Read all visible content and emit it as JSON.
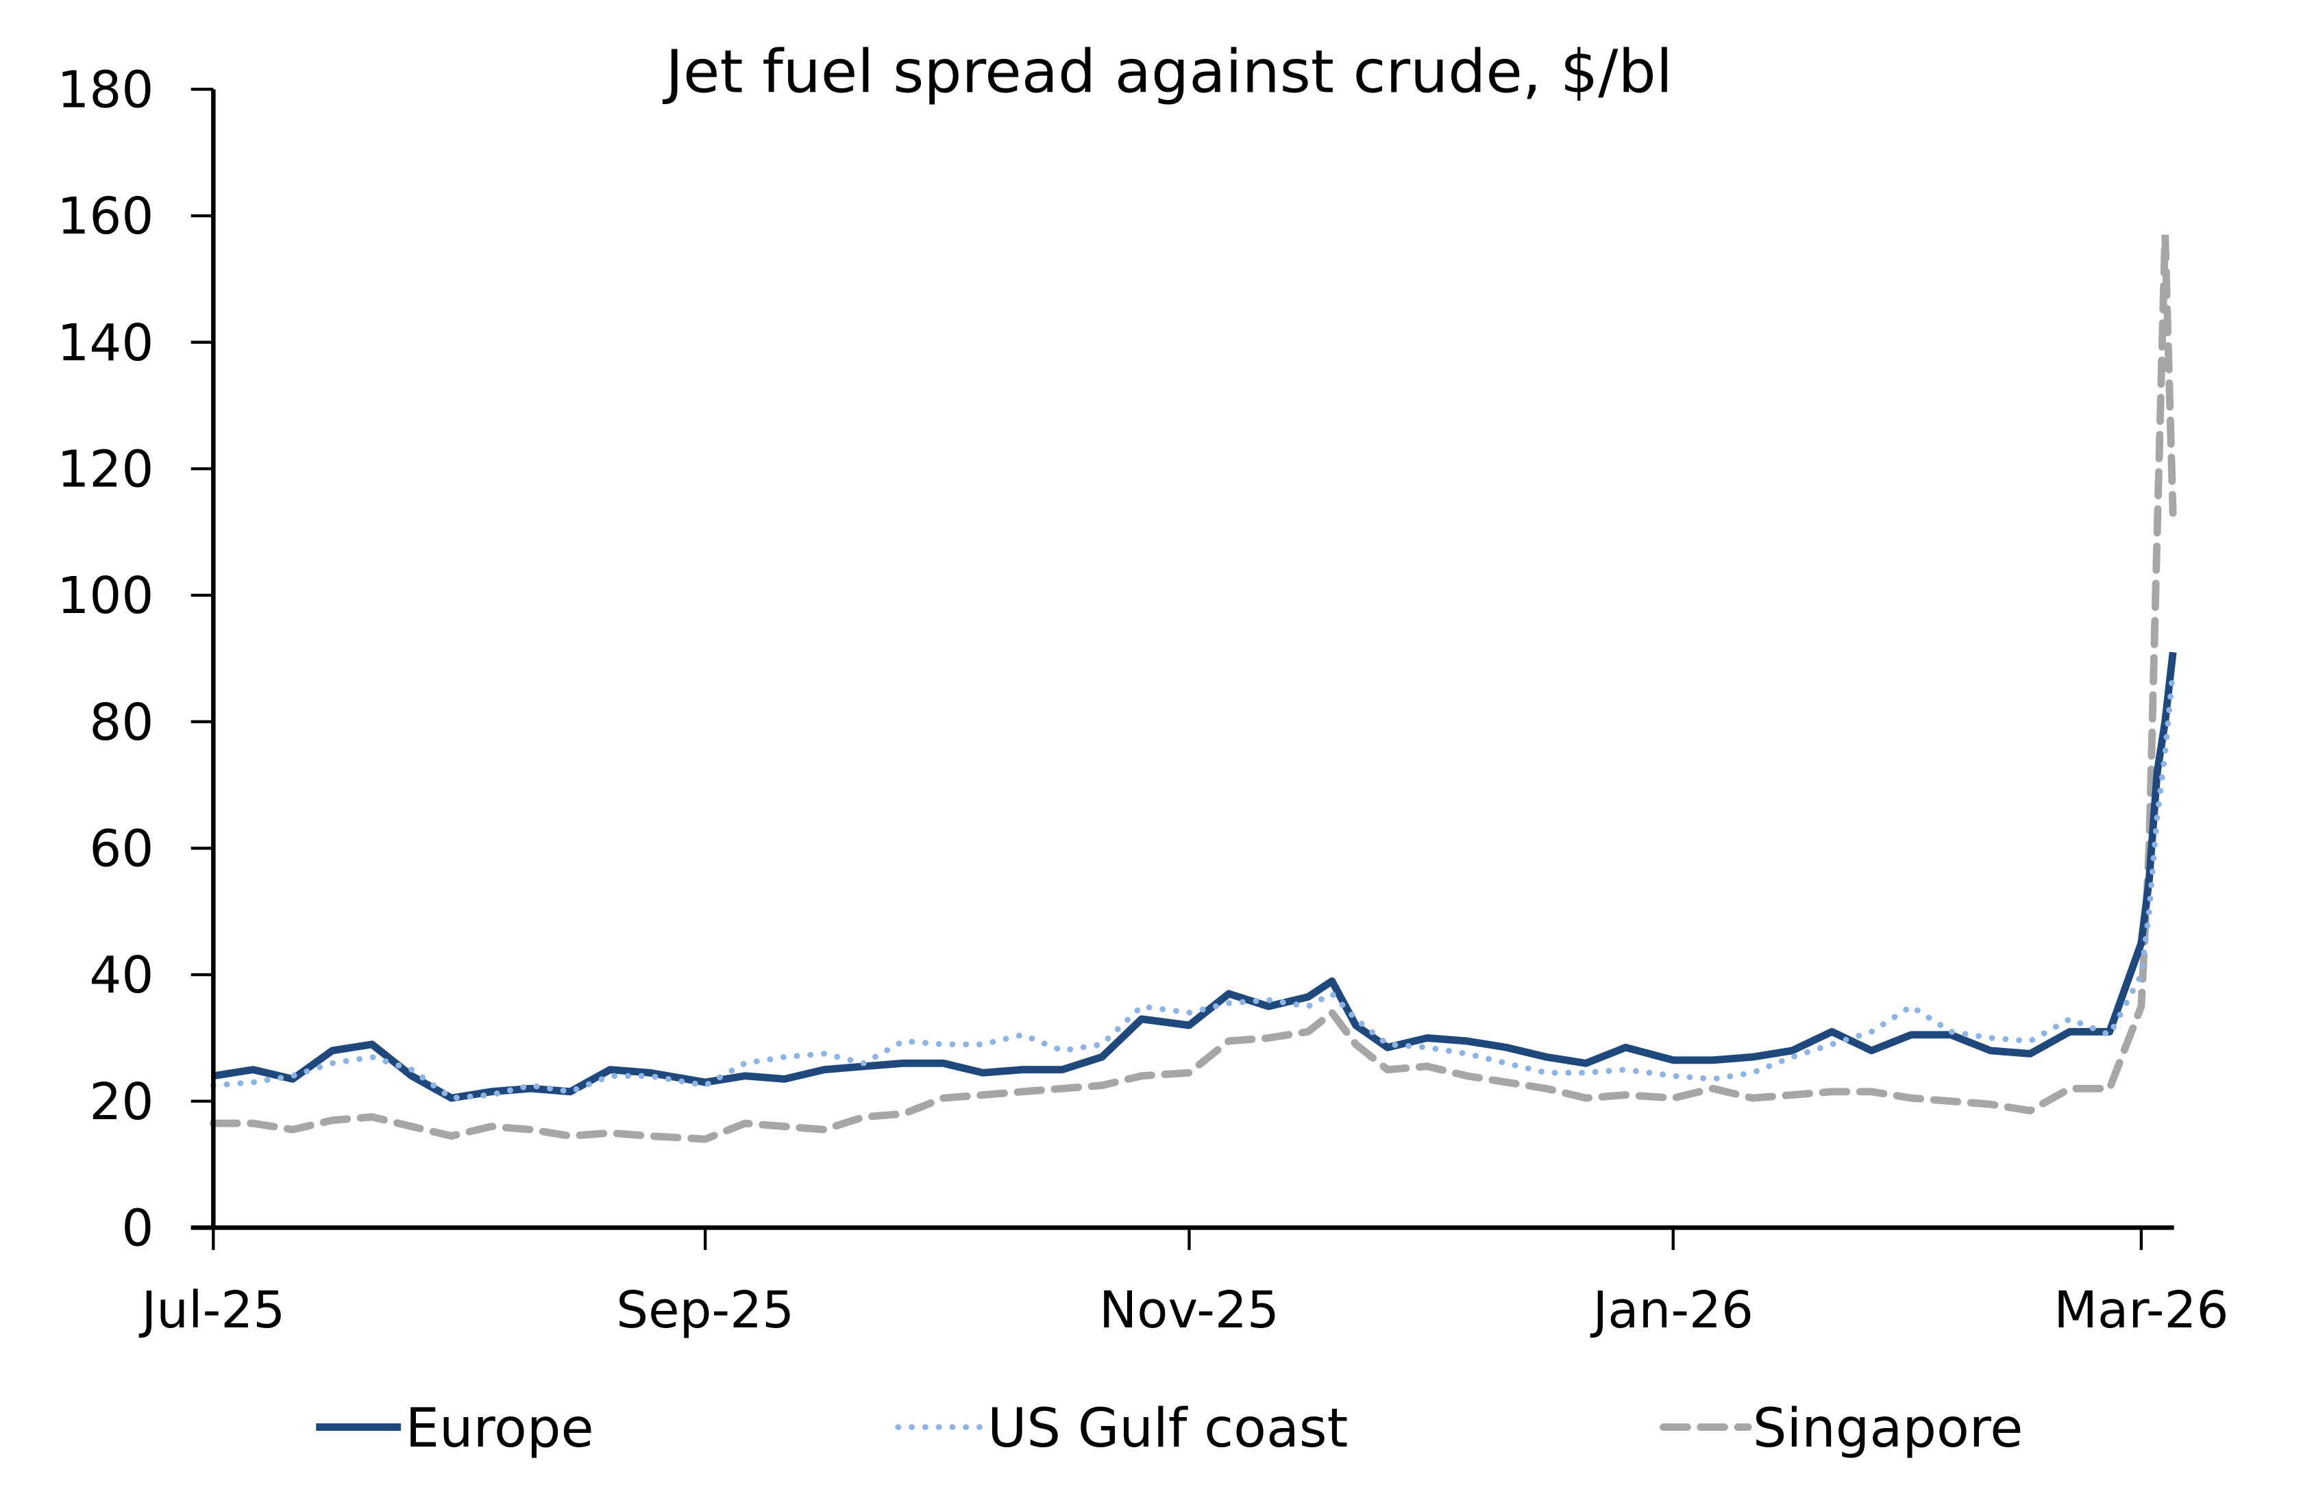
{
  "chart_data": {
    "type": "line",
    "title": "Jet fuel spread against crude, $/bl",
    "xlabel": "",
    "ylabel": "",
    "ylim": [
      0,
      180
    ],
    "yticks": [
      "0",
      "20",
      "40",
      "60",
      "80",
      "100",
      "120",
      "140",
      "160",
      "180"
    ],
    "xlim": [
      "2025-07-01",
      "2026-03-05"
    ],
    "xticks": [
      {
        "date": "2025-07-01",
        "label": "Jul-25"
      },
      {
        "date": "2025-09-01",
        "label": "Sep-25"
      },
      {
        "date": "2025-11-01",
        "label": "Nov-25"
      },
      {
        "date": "2026-01-01",
        "label": "Jan-26"
      },
      {
        "date": "2026-03-01",
        "label": "Mar-26"
      }
    ],
    "grid": false,
    "legend_placement": "bottom",
    "x": [
      "2025-07-01",
      "2025-07-06",
      "2025-07-11",
      "2025-07-16",
      "2025-07-21",
      "2025-07-26",
      "2025-07-31",
      "2025-08-05",
      "2025-08-10",
      "2025-08-15",
      "2025-08-20",
      "2025-08-25",
      "2025-09-01",
      "2025-09-06",
      "2025-09-11",
      "2025-09-16",
      "2025-09-21",
      "2025-09-26",
      "2025-10-01",
      "2025-10-06",
      "2025-10-11",
      "2025-10-16",
      "2025-10-21",
      "2025-10-26",
      "2025-11-01",
      "2025-11-06",
      "2025-11-11",
      "2025-11-16",
      "2025-11-19",
      "2025-11-22",
      "2025-11-26",
      "2025-12-01",
      "2025-12-06",
      "2025-12-11",
      "2025-12-16",
      "2025-12-21",
      "2025-12-26",
      "2026-01-01",
      "2026-01-06",
      "2026-01-11",
      "2026-01-16",
      "2026-01-21",
      "2026-01-26",
      "2026-01-31",
      "2026-02-05",
      "2026-02-10",
      "2026-02-15",
      "2026-02-20",
      "2026-02-25",
      "2026-03-01",
      "2026-03-02",
      "2026-03-03",
      "2026-03-04",
      "2026-03-05"
    ],
    "series": [
      {
        "name": "Europe",
        "color": "#1f497d",
        "style": "solid",
        "values": [
          24,
          25,
          23.5,
          28,
          29,
          24,
          20.5,
          21.5,
          22,
          21.5,
          25,
          24.5,
          23,
          24,
          23.5,
          25,
          25.5,
          26,
          26,
          24.5,
          25,
          25,
          27,
          33,
          32,
          37,
          35,
          36.5,
          39,
          32,
          28.5,
          30,
          29.5,
          28.5,
          27,
          26,
          28.5,
          26.5,
          26.5,
          27,
          28,
          31,
          28,
          30.5,
          30.5,
          28,
          27.5,
          31,
          31,
          45,
          55,
          72,
          80,
          91
        ]
      },
      {
        "name": "US Gulf coast",
        "color": "#8db4e2",
        "style": "dotted",
        "values": [
          22.5,
          23,
          24,
          26,
          27,
          25,
          20.5,
          21,
          22.5,
          21.5,
          24,
          24,
          22.5,
          26,
          27,
          27.5,
          26,
          29.5,
          29,
          29,
          30.5,
          28,
          29,
          35,
          34,
          35.5,
          36,
          35,
          37,
          33,
          29,
          28.5,
          27.5,
          26,
          24.5,
          24.5,
          25,
          24,
          23.5,
          24.5,
          27,
          29,
          31,
          35,
          31,
          30,
          29.5,
          33,
          30.5,
          40,
          50,
          65,
          75,
          88
        ]
      },
      {
        "name": "Singapore",
        "color": "#a6a6a6",
        "style": "dashed",
        "values": [
          16.5,
          16.5,
          15.5,
          17,
          17.5,
          16,
          14.5,
          16,
          15.5,
          14.5,
          15,
          14.5,
          14,
          16.5,
          16,
          15.5,
          17.5,
          18,
          20.5,
          21,
          21.5,
          22,
          22.5,
          24,
          24.5,
          29.5,
          30,
          31,
          34,
          29,
          25,
          25.5,
          24,
          23,
          22,
          20.5,
          21,
          20.5,
          22,
          20.5,
          21,
          21.5,
          21.5,
          20.5,
          20,
          19.5,
          18.5,
          22,
          22,
          35,
          60,
          110,
          157,
          113
        ]
      }
    ]
  }
}
